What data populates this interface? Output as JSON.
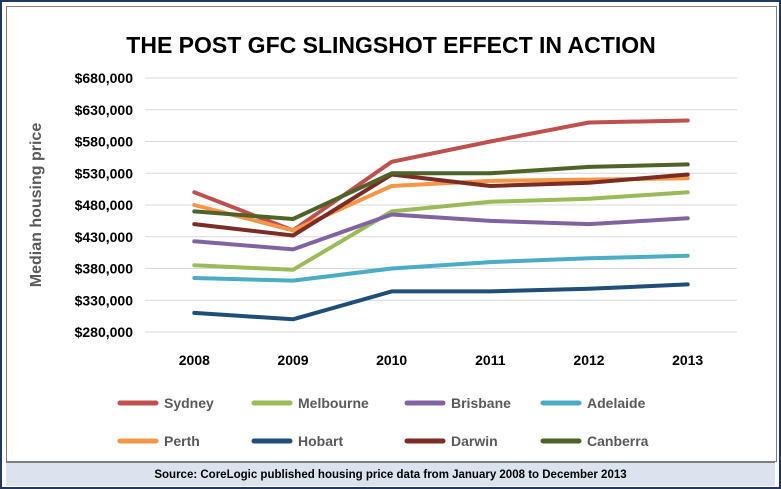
{
  "chart_data": {
    "type": "line",
    "title": "THE POST GFC SLINGSHOT EFFECT IN ACTION",
    "xlabel": "",
    "ylabel": "Median housing price",
    "x": [
      "2008",
      "2009",
      "2010",
      "2011",
      "2012",
      "2013"
    ],
    "y_ticks": [
      "$280,000",
      "$330,000",
      "$380,000",
      "$430,000",
      "$480,000",
      "$530,000",
      "$580,000",
      "$630,000",
      "$680,000"
    ],
    "ylim": [
      280000,
      680000
    ],
    "grid": true,
    "legend_position": "bottom",
    "series": [
      {
        "name": "Sydney",
        "color": "#c0504d",
        "values": [
          500000,
          440000,
          548000,
          580000,
          610000,
          613000
        ]
      },
      {
        "name": "Melbourne",
        "color": "#9bbb59",
        "values": [
          385000,
          378000,
          470000,
          485000,
          490000,
          500000
        ]
      },
      {
        "name": "Brisbane",
        "color": "#8064a2",
        "values": [
          423000,
          410000,
          465000,
          455000,
          450000,
          459000
        ]
      },
      {
        "name": "Adelaide",
        "color": "#4bacc6",
        "values": [
          365000,
          361000,
          380000,
          390000,
          396000,
          400000
        ]
      },
      {
        "name": "Perth",
        "color": "#f79646",
        "values": [
          480000,
          440000,
          510000,
          518000,
          520000,
          522000
        ]
      },
      {
        "name": "Hobart",
        "color": "#1f4e79",
        "values": [
          310000,
          300000,
          344000,
          344000,
          348000,
          355000
        ]
      },
      {
        "name": "Darwin",
        "color": "#7b2c24",
        "values": [
          450000,
          432000,
          528000,
          510000,
          515000,
          528000
        ]
      },
      {
        "name": "Canberra",
        "color": "#4f6228",
        "values": [
          470000,
          458000,
          530000,
          530000,
          540000,
          544000
        ]
      }
    ]
  },
  "footer": {
    "source": "Source: CoreLogic published housing price data from January 2008 to December 2013"
  }
}
